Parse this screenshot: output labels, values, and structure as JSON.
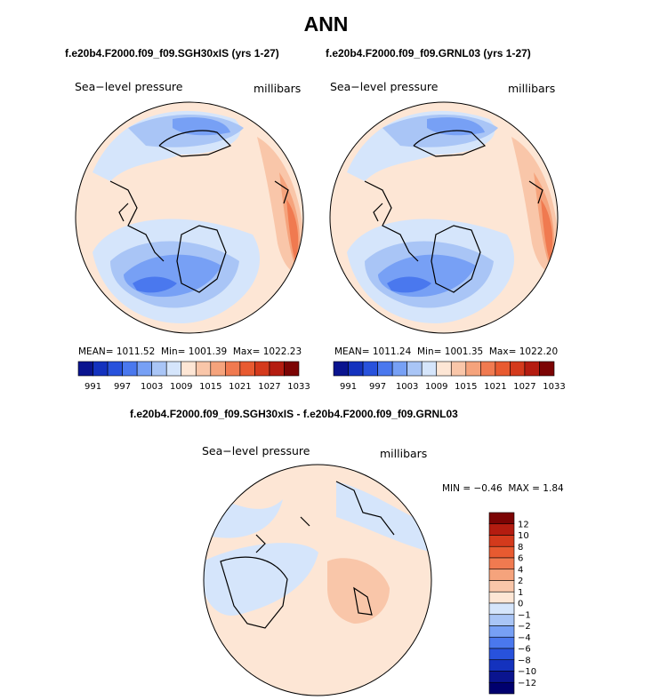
{
  "page": {
    "title": "ANN"
  },
  "panels": [
    {
      "id": "left",
      "subtitle": "f.e20b4.F2000.f09_f09.SGH30xIS (yrs 1-27)",
      "variable": "Sea−level pressure",
      "units": "millibars",
      "stats": {
        "mean_label": "MEAN=",
        "mean": "1011.52",
        "min_label": "Min=",
        "min": "1001.39",
        "max_label": "Max=",
        "max": "1022.23"
      }
    },
    {
      "id": "right",
      "subtitle": "f.e20b4.F2000.f09_f09.GRNL03 (yrs 1-27)",
      "variable": "Sea−level pressure",
      "units": "millibars",
      "stats": {
        "mean_label": "MEAN=",
        "mean": "1011.24",
        "min_label": "Min=",
        "min": "1001.35",
        "max_label": "Max=",
        "max": "1022.20"
      }
    },
    {
      "id": "diff",
      "subtitle": "f.e20b4.F2000.f09_f09.SGH30xIS - f.e20b4.F2000.f09_f09.GRNL03",
      "variable": "Sea−level pressure",
      "units": "millibars",
      "stats": {
        "min_label": "MIN =",
        "min": "−0.46",
        "max_label": "MAX =",
        "max": "1.84"
      }
    }
  ],
  "chart_data": [
    {
      "type": "heatmap",
      "projection": "north-polar-stereographic",
      "title": "f.e20b4.F2000.f09_f09.SGH30xIS (yrs 1-27)",
      "variable": "Sea-level pressure",
      "units": "millibars",
      "mean": 1011.52,
      "min": 1001.39,
      "max": 1022.23,
      "colorbar": {
        "orientation": "horizontal",
        "levels": [
          991,
          994,
          997,
          1000,
          1003,
          1006,
          1009,
          1012,
          1015,
          1018,
          1021,
          1024,
          1027,
          1030,
          1033
        ],
        "tick_labels": [
          "991",
          "997",
          "1003",
          "1009",
          "1015",
          "1021",
          "1027",
          "1033"
        ],
        "colors": [
          "#0a148f",
          "#1432be",
          "#2852dc",
          "#4a78ee",
          "#77a0f5",
          "#a9c5f6",
          "#d5e5fb",
          "#fde6d5",
          "#f9c6a9",
          "#f5a37c",
          "#f07a50",
          "#e85a30",
          "#d43a1c",
          "#b41c10",
          "#7c0404"
        ]
      }
    },
    {
      "type": "heatmap",
      "projection": "north-polar-stereographic",
      "title": "f.e20b4.F2000.f09_f09.GRNL03 (yrs 1-27)",
      "variable": "Sea-level pressure",
      "units": "millibars",
      "mean": 1011.24,
      "min": 1001.35,
      "max": 1022.2,
      "colorbar": {
        "orientation": "horizontal",
        "levels": [
          991,
          994,
          997,
          1000,
          1003,
          1006,
          1009,
          1012,
          1015,
          1018,
          1021,
          1024,
          1027,
          1030,
          1033
        ],
        "tick_labels": [
          "991",
          "997",
          "1003",
          "1009",
          "1015",
          "1021",
          "1027",
          "1033"
        ],
        "colors": [
          "#0a148f",
          "#1432be",
          "#2852dc",
          "#4a78ee",
          "#77a0f5",
          "#a9c5f6",
          "#d5e5fb",
          "#fde6d5",
          "#f9c6a9",
          "#f5a37c",
          "#f07a50",
          "#e85a30",
          "#d43a1c",
          "#b41c10",
          "#7c0404"
        ]
      }
    },
    {
      "type": "heatmap",
      "projection": "north-polar-stereographic",
      "title": "f.e20b4.F2000.f09_f09.SGH30xIS - f.e20b4.F2000.f09_f09.GRNL03",
      "variable": "Sea-level pressure",
      "units": "millibars",
      "min": -0.46,
      "max": 1.84,
      "colorbar": {
        "orientation": "vertical",
        "levels": [
          12,
          10,
          8,
          6,
          4,
          2,
          1,
          0,
          -1,
          -2,
          -4,
          -6,
          -8,
          -10,
          -12
        ],
        "tick_labels": [
          "12",
          "10",
          "8",
          "6",
          "4",
          "2",
          "1",
          "0",
          "−1",
          "−2",
          "−4",
          "−6",
          "−8",
          "−10",
          "−12"
        ],
        "colors": [
          "#7c0404",
          "#b41c10",
          "#d43a1c",
          "#e85a30",
          "#f07a50",
          "#f5a37c",
          "#f9c6a9",
          "#fde6d5",
          "#d5e5fb",
          "#a9c5f6",
          "#77a0f5",
          "#4a78ee",
          "#2852dc",
          "#1432be",
          "#0a148f",
          "#00006e"
        ]
      }
    }
  ]
}
